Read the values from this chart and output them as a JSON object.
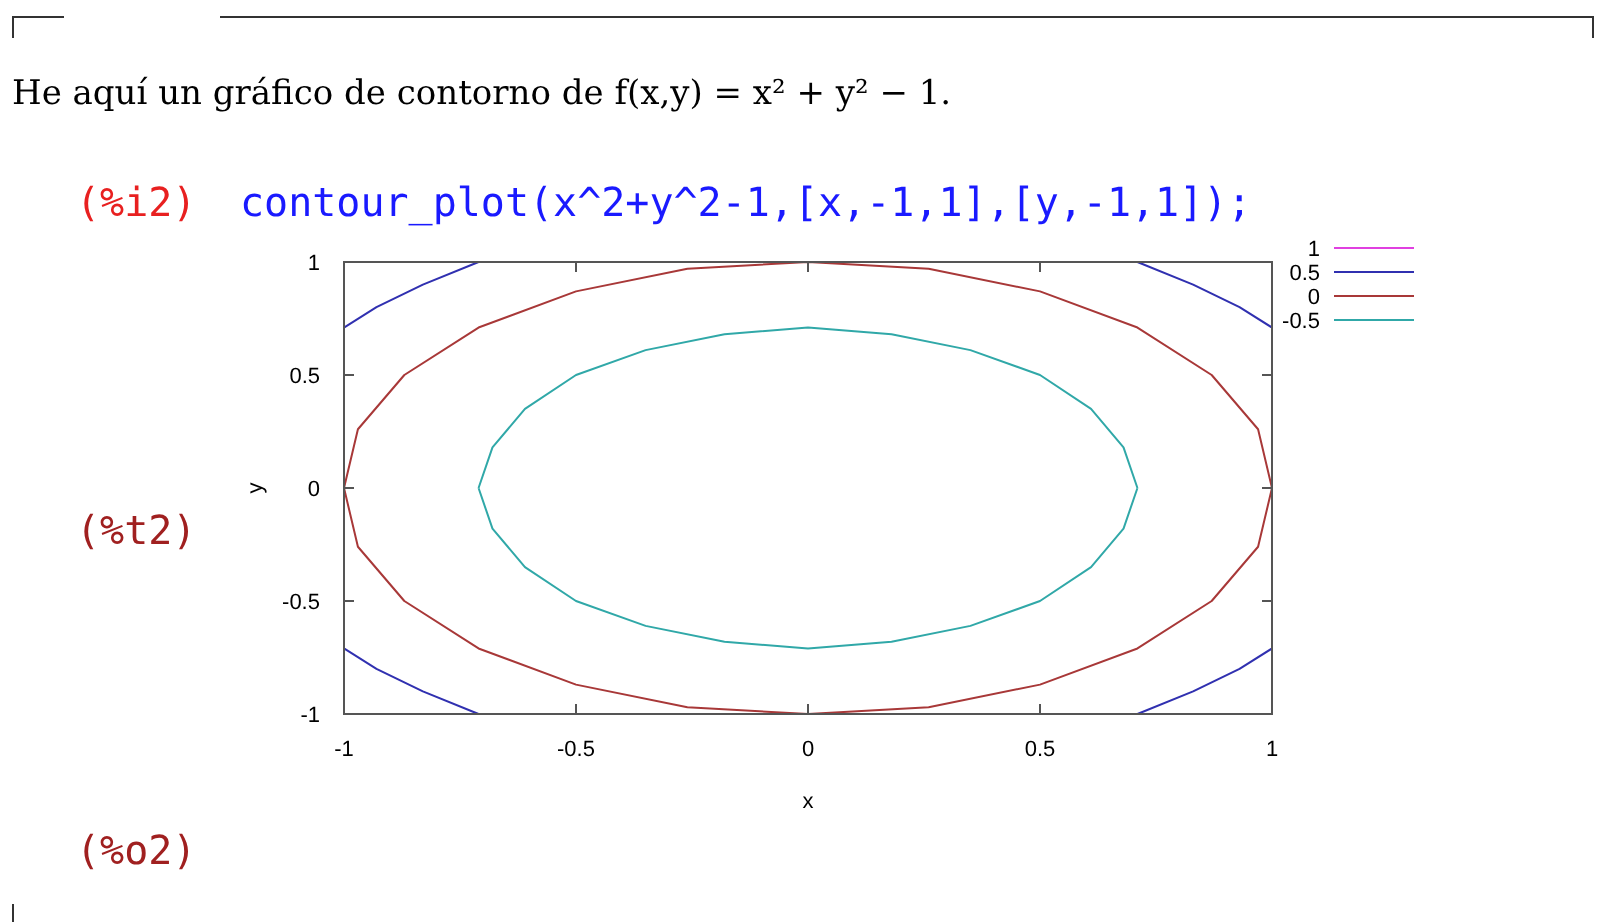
{
  "chart_data": {
    "type": "line",
    "title": "He aquí un gráfico de contorno de f(x,y) = x² + y² − 1.",
    "annotations": [
      "(%i2)",
      "contour_plot(x^2+y^2-1,[x,-1,1],[y,-1,1]);",
      "(%t2)",
      "(%o2)"
    ],
    "xlabel": "x",
    "ylabel": "y",
    "xlim": [
      -1,
      1
    ],
    "ylim": [
      -1,
      1
    ],
    "xticks": [
      -1,
      -0.5,
      0,
      0.5,
      1
    ],
    "yticks": [
      -1,
      -0.5,
      0,
      0.5,
      1
    ],
    "grid": false,
    "legend": "top right",
    "line_style": "solid",
    "series": [
      {
        "name": "1",
        "color": "#e040e0"
      },
      {
        "name": "0.5",
        "color": "#3030b0",
        "x": [
          -1,
          -0.93,
          -0.83,
          -0.71,
          null,
          0.71,
          0.83,
          0.93,
          1,
          null,
          -1,
          -0.93,
          -0.83,
          -0.71,
          null,
          0.71,
          0.83,
          0.93,
          1
        ],
        "values": [
          0.71,
          0.8,
          0.9,
          1,
          null,
          1,
          0.9,
          0.8,
          0.71,
          null,
          -0.71,
          -0.8,
          -0.9,
          -1,
          null,
          -1,
          -0.9,
          -0.8,
          -0.71
        ]
      },
      {
        "name": "0",
        "color": "#a83838",
        "x": [
          -1,
          -0.97,
          -0.87,
          -0.71,
          -0.5,
          -0.26,
          0,
          0.26,
          0.5,
          0.71,
          0.87,
          0.97,
          1,
          null,
          -1,
          -0.97,
          -0.87,
          -0.71,
          -0.5,
          -0.26,
          0,
          0.26,
          0.5,
          0.71,
          0.87,
          0.97,
          1
        ],
        "values": [
          0,
          0.26,
          0.5,
          0.71,
          0.87,
          0.97,
          1,
          0.97,
          0.87,
          0.71,
          0.5,
          0.26,
          0,
          null,
          0,
          -0.26,
          -0.5,
          -0.71,
          -0.87,
          -0.97,
          -1,
          -0.97,
          -0.87,
          -0.71,
          -0.5,
          -0.26,
          0
        ]
      },
      {
        "name": "-0.5",
        "color": "#30a8a8",
        "x": [
          -0.71,
          -0.68,
          -0.61,
          -0.5,
          -0.35,
          -0.18,
          0,
          0.18,
          0.35,
          0.5,
          0.61,
          0.68,
          0.71,
          null,
          -0.71,
          -0.68,
          -0.61,
          -0.5,
          -0.35,
          -0.18,
          0,
          0.18,
          0.35,
          0.5,
          0.61,
          0.68,
          0.71
        ],
        "values": [
          0,
          0.18,
          0.35,
          0.5,
          0.61,
          0.68,
          0.71,
          0.68,
          0.61,
          0.5,
          0.35,
          0.18,
          0,
          null,
          0,
          -0.18,
          -0.35,
          -0.5,
          -0.61,
          -0.68,
          -0.71,
          -0.68,
          -0.61,
          -0.5,
          -0.35,
          -0.18,
          0
        ]
      }
    ]
  }
}
